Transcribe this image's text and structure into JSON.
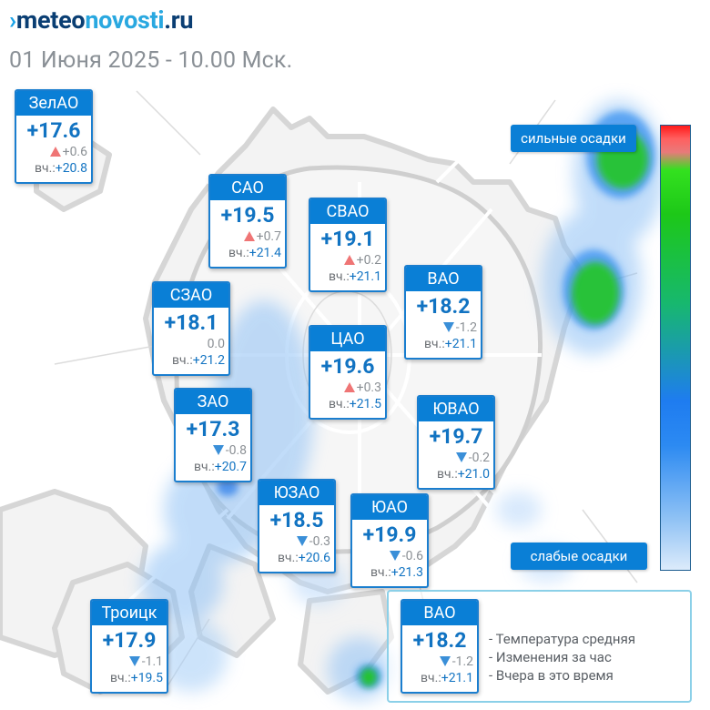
{
  "header": {
    "logo_prefix": "›",
    "logo_w1": "meteo",
    "logo_w2": "novosti",
    "logo_w3": ".ru",
    "subtitle": "01 Июня 2025 - 10.00 Мск."
  },
  "scale": {
    "top_label": "сильные осадки",
    "bottom_label": "слабые осадки"
  },
  "districts": [
    {
      "name": "ЗелАО",
      "temp": "+17.6",
      "trend": "up",
      "change": "+0.6",
      "yesterday_label": "вч.:",
      "yesterday": "+20.8"
    },
    {
      "name": "САО",
      "temp": "+19.5",
      "trend": "up",
      "change": "+0.7",
      "yesterday_label": "вч.:",
      "yesterday": "+21.4"
    },
    {
      "name": "СВАО",
      "temp": "+19.1",
      "trend": "up",
      "change": "+0.2",
      "yesterday_label": "вч.:",
      "yesterday": "+21.1"
    },
    {
      "name": "ВАО",
      "temp": "+18.2",
      "trend": "down",
      "change": "-1.2",
      "yesterday_label": "вч.:",
      "yesterday": "+21.1"
    },
    {
      "name": "СЗАО",
      "temp": "+18.1",
      "trend": "none",
      "change": "0.0",
      "yesterday_label": "вч.:",
      "yesterday": "+21.2"
    },
    {
      "name": "ЦАО",
      "temp": "+19.6",
      "trend": "up",
      "change": "+0.3",
      "yesterday_label": "вч.:",
      "yesterday": "+21.5"
    },
    {
      "name": "ЗАО",
      "temp": "+17.3",
      "trend": "down",
      "change": "-0.8",
      "yesterday_label": "вч.:",
      "yesterday": "+20.7"
    },
    {
      "name": "ЮВАО",
      "temp": "+19.7",
      "trend": "down",
      "change": "-0.2",
      "yesterday_label": "вч.:",
      "yesterday": "+21.0"
    },
    {
      "name": "ЮЗАО",
      "temp": "+18.5",
      "trend": "down",
      "change": "-0.3",
      "yesterday_label": "вч.:",
      "yesterday": "+20.6"
    },
    {
      "name": "ЮАО",
      "temp": "+19.9",
      "trend": "down",
      "change": "-0.6",
      "yesterday_label": "вч.:",
      "yesterday": "+21.3"
    },
    {
      "name": "Троицк",
      "temp": "+17.9",
      "trend": "down",
      "change": "-1.1",
      "yesterday_label": "вч.:",
      "yesterday": "+19.5"
    }
  ],
  "legend": {
    "sample": {
      "name": "ВАО",
      "temp": "+18.2",
      "trend": "down",
      "change": "-1.2",
      "yesterday_label": "вч.:",
      "yesterday": "+21.1"
    },
    "line1": "- Температура средняя",
    "line2": "- Изменения за час",
    "line3": "- Вчера в это время"
  },
  "colors": {
    "card_header": "#0a7fd6",
    "temp_text": "#1173c2",
    "trend_up": "#ef7575",
    "trend_down": "#3a8fd8",
    "precip_light": "#3b8ff0",
    "precip_heavy": "#1dc818"
  }
}
